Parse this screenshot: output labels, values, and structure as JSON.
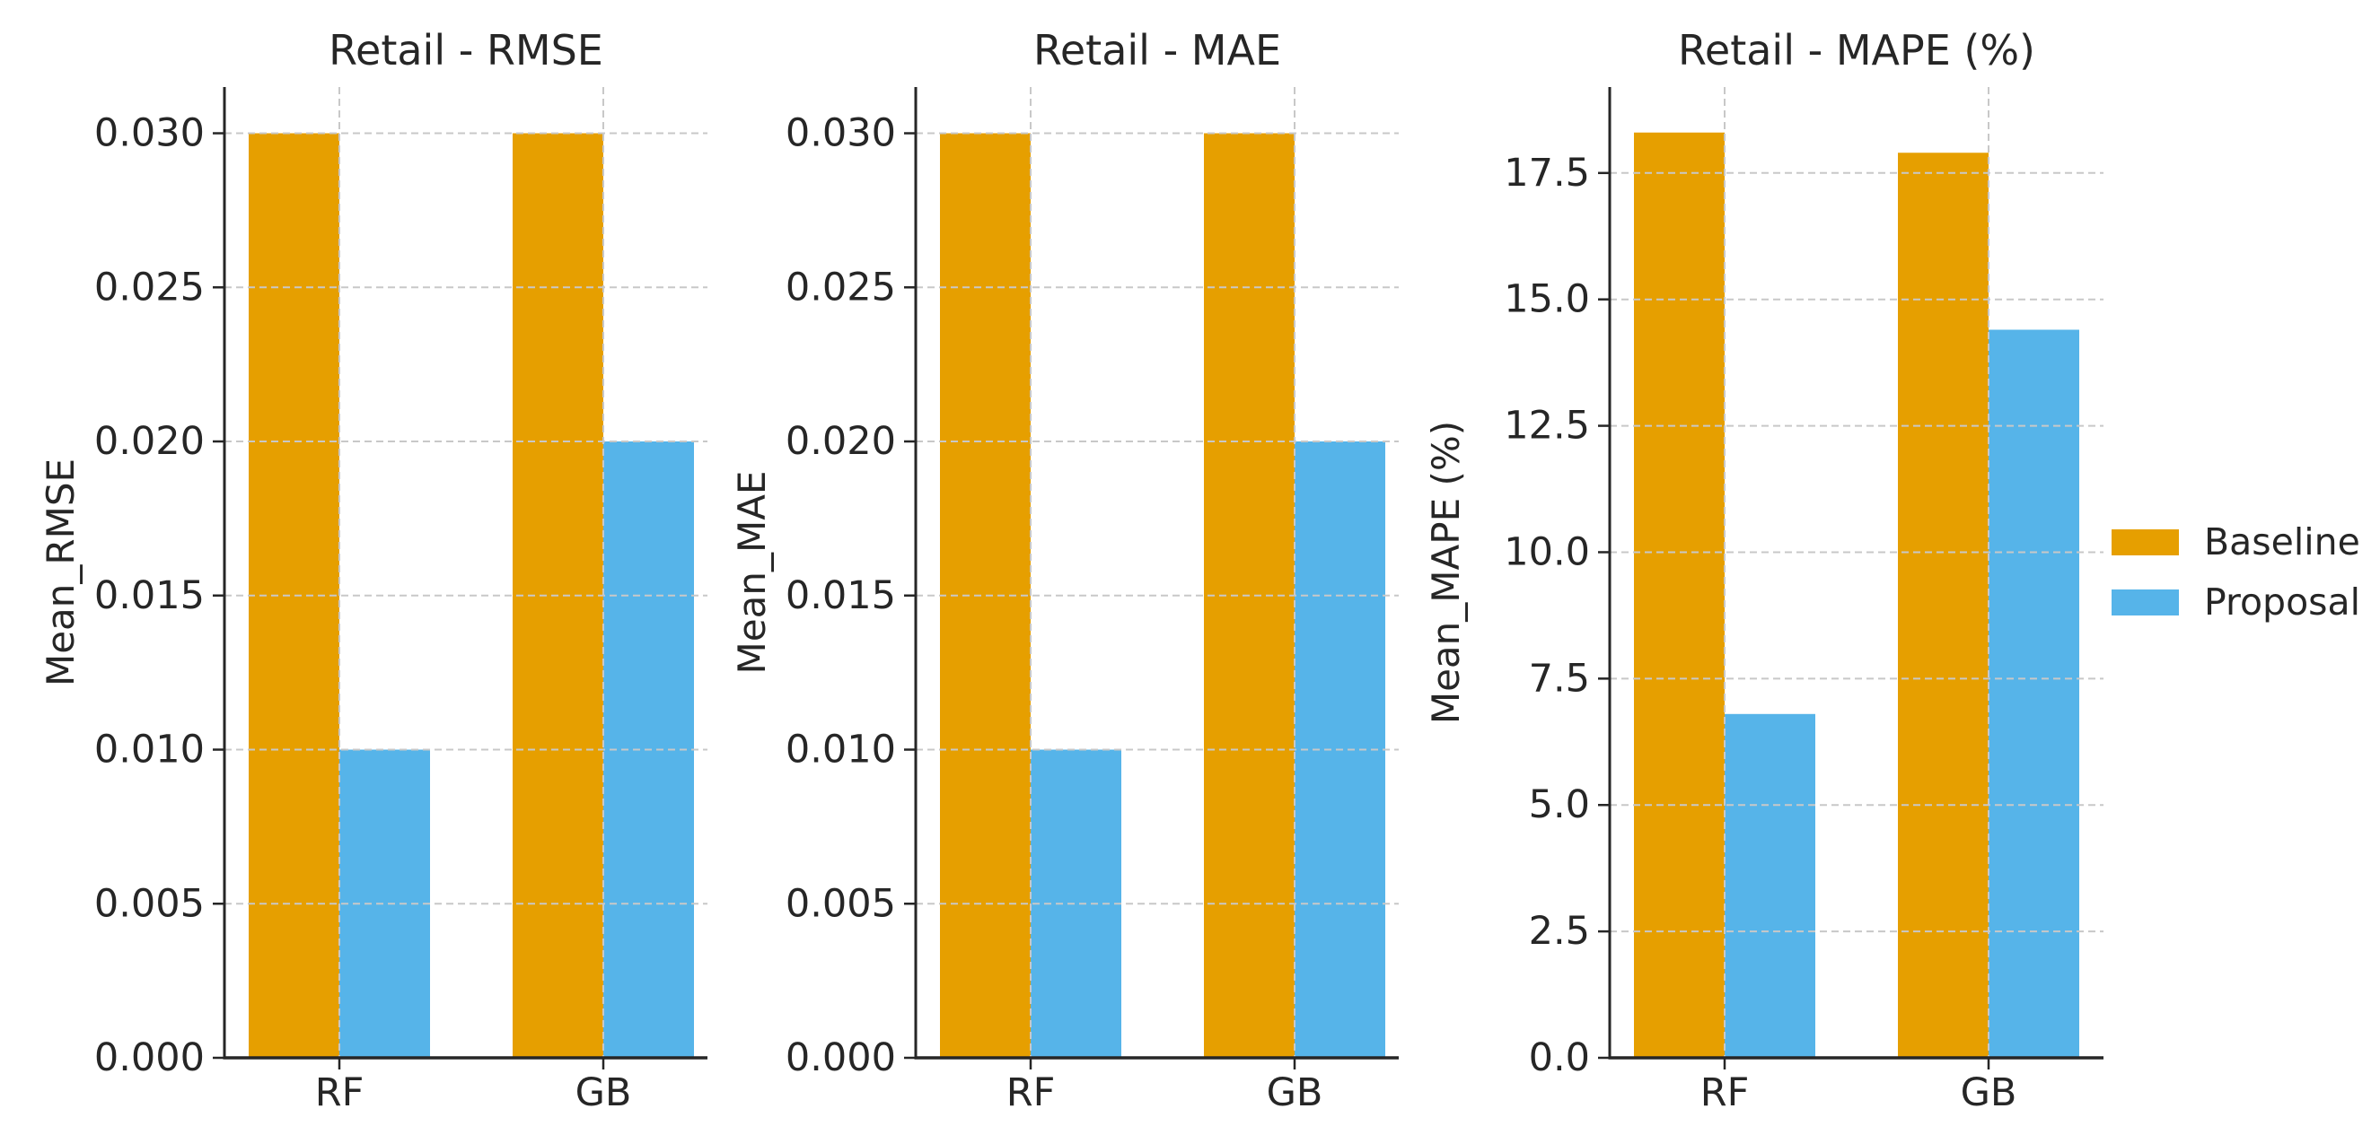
{
  "figure": {
    "background": "#ffffff",
    "text_color": "#262626",
    "axis_color": "#262626",
    "grid_color": "#c8c8c8",
    "legend": {
      "position": "center-right",
      "entries": [
        {
          "label": "Baseline",
          "color": "#E69F00"
        },
        {
          "label": "Proposal",
          "color": "#56B4E9"
        }
      ]
    }
  },
  "chart_data": [
    {
      "id": "rmse",
      "type": "bar",
      "title": "Retail - RMSE",
      "xlabel": "",
      "ylabel": "Mean_RMSE",
      "categories": [
        "RF",
        "GB"
      ],
      "series": [
        {
          "name": "Baseline",
          "color": "#E69F00",
          "values": [
            0.03,
            0.03
          ]
        },
        {
          "name": "Proposal",
          "color": "#56B4E9",
          "values": [
            0.01,
            0.02
          ]
        }
      ],
      "ylim": [
        0,
        0.0315
      ],
      "yticks": [
        0,
        0.005,
        0.01,
        0.015,
        0.02,
        0.025,
        0.03
      ],
      "ytick_labels": [
        "0.000",
        "0.005",
        "0.010",
        "0.015",
        "0.020",
        "0.025",
        "0.030"
      ],
      "grid": "both-dashed",
      "legend_visible": false
    },
    {
      "id": "mae",
      "type": "bar",
      "title": "Retail - MAE",
      "xlabel": "",
      "ylabel": "Mean_MAE",
      "categories": [
        "RF",
        "GB"
      ],
      "series": [
        {
          "name": "Baseline",
          "color": "#E69F00",
          "values": [
            0.03,
            0.03
          ]
        },
        {
          "name": "Proposal",
          "color": "#56B4E9",
          "values": [
            0.01,
            0.02
          ]
        }
      ],
      "ylim": [
        0,
        0.0315
      ],
      "yticks": [
        0,
        0.005,
        0.01,
        0.015,
        0.02,
        0.025,
        0.03
      ],
      "ytick_labels": [
        "0.000",
        "0.005",
        "0.010",
        "0.015",
        "0.020",
        "0.025",
        "0.030"
      ],
      "grid": "both-dashed",
      "legend_visible": false
    },
    {
      "id": "mape",
      "type": "bar",
      "title": "Retail - MAPE (%)",
      "xlabel": "",
      "ylabel": "Mean_MAPE (%)",
      "categories": [
        "RF",
        "GB"
      ],
      "series": [
        {
          "name": "Baseline",
          "color": "#E69F00",
          "values": [
            18.3,
            17.9
          ]
        },
        {
          "name": "Proposal",
          "color": "#56B4E9",
          "values": [
            6.8,
            14.4
          ]
        }
      ],
      "ylim": [
        0,
        19.2
      ],
      "yticks": [
        0,
        2.5,
        5.0,
        7.5,
        10.0,
        12.5,
        15.0,
        17.5
      ],
      "ytick_labels": [
        "0.0",
        "2.5",
        "5.0",
        "7.5",
        "10.0",
        "12.5",
        "15.0",
        "17.5"
      ],
      "grid": "both-dashed",
      "legend_visible": true
    }
  ]
}
